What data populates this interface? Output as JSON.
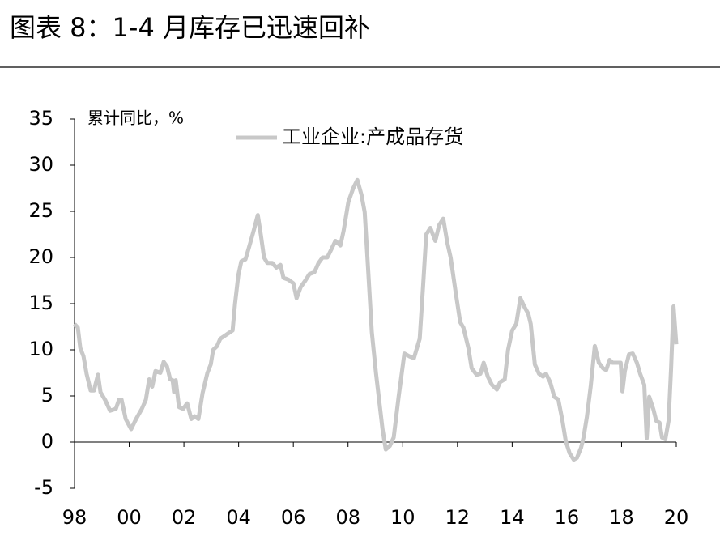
{
  "chart_data": {
    "type": "line",
    "title": "图表 8：1-4 月库存已迅速回补",
    "y_label": "累计同比，%",
    "legend": "top",
    "grid": false,
    "xlim": [
      1998,
      2020
    ],
    "xticks": [
      {
        "value": 1998,
        "label": "98"
      },
      {
        "value": 2000,
        "label": "00"
      },
      {
        "value": 2002,
        "label": "02"
      },
      {
        "value": 2004,
        "label": "04"
      },
      {
        "value": 2006,
        "label": "06"
      },
      {
        "value": 2008,
        "label": "08"
      },
      {
        "value": 2010,
        "label": "10"
      },
      {
        "value": 2012,
        "label": "12"
      },
      {
        "value": 2014,
        "label": "14"
      },
      {
        "value": 2016,
        "label": "16"
      },
      {
        "value": 2018,
        "label": "18"
      },
      {
        "value": 2020,
        "label": "20"
      }
    ],
    "ylim": [
      -5,
      35
    ],
    "yticks": [
      -5,
      0,
      5,
      10,
      15,
      20,
      25,
      30,
      35
    ],
    "x": [
      1998.0,
      1998.12,
      1998.21,
      1998.33,
      1998.44,
      1998.59,
      1998.71,
      1998.86,
      1998.95,
      1999.13,
      1999.3,
      1999.51,
      1999.63,
      1999.72,
      1999.87,
      2000.07,
      2000.25,
      2000.46,
      2000.61,
      2000.73,
      2000.84,
      2000.96,
      2001.14,
      2001.26,
      2001.38,
      2001.5,
      2001.59,
      2001.64,
      2001.7,
      2001.82,
      2001.97,
      2002.12,
      2002.27,
      2002.39,
      2002.53,
      2002.68,
      2002.86,
      2002.98,
      2003.07,
      2003.21,
      2003.33,
      2003.48,
      2003.63,
      2003.78,
      2003.87,
      2003.99,
      2004.1,
      2004.25,
      2004.4,
      2004.55,
      2004.7,
      2004.81,
      2004.93,
      2005.05,
      2005.23,
      2005.38,
      2005.53,
      2005.64,
      2005.82,
      2006.0,
      2006.12,
      2006.27,
      2006.44,
      2006.59,
      2006.77,
      2006.92,
      2007.07,
      2007.24,
      2007.36,
      2007.54,
      2007.72,
      2007.84,
      2008.01,
      2008.19,
      2008.34,
      2008.49,
      2008.61,
      2008.73,
      2008.87,
      2009.02,
      2009.14,
      2009.26,
      2009.38,
      2009.53,
      2009.67,
      2009.85,
      2010.06,
      2010.24,
      2010.41,
      2010.62,
      2010.74,
      2010.86,
      2011.01,
      2011.19,
      2011.33,
      2011.48,
      2011.63,
      2011.75,
      2011.93,
      2012.1,
      2012.22,
      2012.4,
      2012.52,
      2012.7,
      2012.84,
      2012.96,
      2013.11,
      2013.26,
      2013.44,
      2013.56,
      2013.73,
      2013.85,
      2014.0,
      2014.15,
      2014.3,
      2014.44,
      2014.59,
      2014.68,
      2014.83,
      2014.98,
      2015.13,
      2015.24,
      2015.39,
      2015.54,
      2015.69,
      2015.84,
      2015.96,
      2016.1,
      2016.25,
      2016.37,
      2016.52,
      2016.61,
      2016.73,
      2016.87,
      2017.02,
      2017.17,
      2017.32,
      2017.44,
      2017.56,
      2017.67,
      2017.82,
      2017.97,
      2018.03,
      2018.12,
      2018.27,
      2018.41,
      2018.56,
      2018.68,
      2018.83,
      2018.92,
      2019.01,
      2019.16,
      2019.27,
      2019.39,
      2019.48,
      2019.6,
      2019.72,
      2019.81,
      2019.9,
      2020.0
    ],
    "series": [
      {
        "name": "工业企业:产成品存货",
        "color": "#c8c8c8",
        "values": [
          12.8,
          12.4,
          10.2,
          9.3,
          7.4,
          5.6,
          5.6,
          7.3,
          5.4,
          4.5,
          3.4,
          3.6,
          4.6,
          4.6,
          2.5,
          1.4,
          2.5,
          3.6,
          4.6,
          6.8,
          6.0,
          7.7,
          7.5,
          8.7,
          8.2,
          6.8,
          6.7,
          5.4,
          6.7,
          3.8,
          3.6,
          4.2,
          2.5,
          2.8,
          2.5,
          5.3,
          7.5,
          8.4,
          10.0,
          10.4,
          11.2,
          11.5,
          11.8,
          12.1,
          15.0,
          18.1,
          19.6,
          19.8,
          21.3,
          22.9,
          24.6,
          22.5,
          20.0,
          19.4,
          19.4,
          18.9,
          19.2,
          17.8,
          17.6,
          17.2,
          15.6,
          16.8,
          17.5,
          18.2,
          18.4,
          19.4,
          20.0,
          20.0,
          20.7,
          21.8,
          21.3,
          22.9,
          26.0,
          27.5,
          28.4,
          26.8,
          24.9,
          18.9,
          11.9,
          7.5,
          4.5,
          1.4,
          -0.8,
          -0.4,
          0.5,
          4.9,
          9.6,
          9.3,
          9.1,
          11.2,
          16.8,
          22.5,
          23.2,
          21.8,
          23.5,
          24.2,
          21.6,
          20.0,
          16.3,
          13.0,
          12.4,
          10.2,
          8.0,
          7.3,
          7.4,
          8.6,
          7.1,
          6.2,
          5.7,
          6.5,
          6.8,
          10.0,
          12.1,
          12.8,
          15.6,
          14.7,
          13.9,
          12.8,
          8.4,
          7.4,
          7.1,
          7.4,
          6.5,
          4.9,
          4.6,
          2.3,
          0.1,
          -1.2,
          -1.9,
          -1.7,
          -0.6,
          0.5,
          2.7,
          6.0,
          10.4,
          8.6,
          8.0,
          7.8,
          8.9,
          8.6,
          8.6,
          8.6,
          5.5,
          7.7,
          9.5,
          9.6,
          8.6,
          7.4,
          6.2,
          0.4,
          4.9,
          3.6,
          2.3,
          2.1,
          0.5,
          0.3,
          2.3,
          8.0,
          14.7,
          10.6
        ]
      }
    ]
  }
}
